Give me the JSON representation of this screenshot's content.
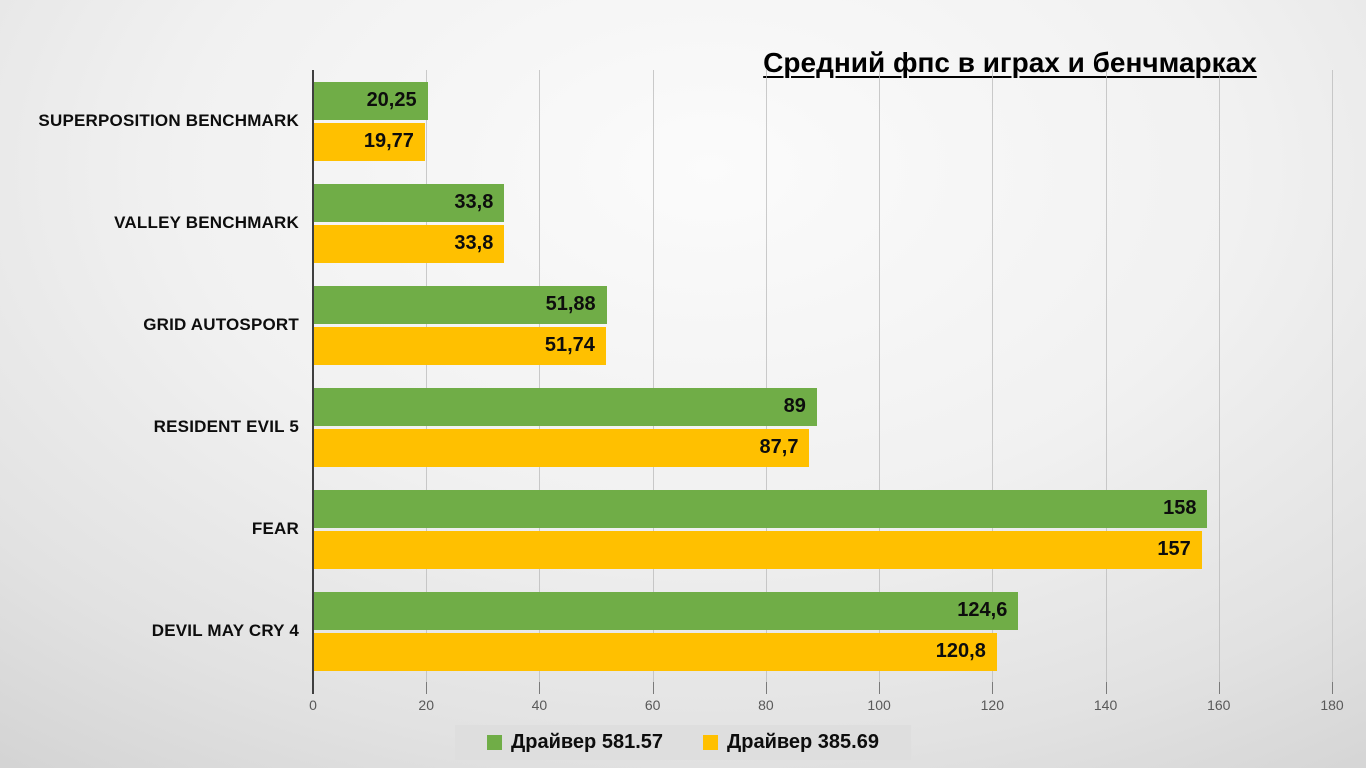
{
  "chart_data": {
    "type": "bar",
    "orientation": "horizontal",
    "title": "Средний фпс в играх и бенчмарках",
    "categories": [
      "SUPERPOSITION BENCHMARK",
      "VALLEY BENCHMARK",
      "GRID AUTOSPORT",
      "RESIDENT EVIL 5",
      "FEAR",
      "DEVIL MAY CRY 4"
    ],
    "series": [
      {
        "name": "Драйвер 581.57",
        "color": "#70AD47",
        "values": [
          20.25,
          33.8,
          51.88,
          89,
          158,
          124.6
        ],
        "labels": [
          "20,25",
          "33,8",
          "51,88",
          "89",
          "158",
          "124,6"
        ]
      },
      {
        "name": "Драйвер 385.69",
        "color": "#FFC000",
        "values": [
          19.77,
          33.8,
          51.74,
          87.7,
          157,
          120.8
        ],
        "labels": [
          "19,77",
          "33,8",
          "51,74",
          "87,7",
          "157",
          "120,8"
        ]
      }
    ],
    "x_axis": {
      "min": 0,
      "max": 180,
      "tick_step": 20,
      "ticks": [
        "0",
        "20",
        "40",
        "60",
        "80",
        "100",
        "120",
        "140",
        "160",
        "180"
      ]
    },
    "legend_position": "bottom",
    "grid": true,
    "value_label_position": "inside-end"
  }
}
